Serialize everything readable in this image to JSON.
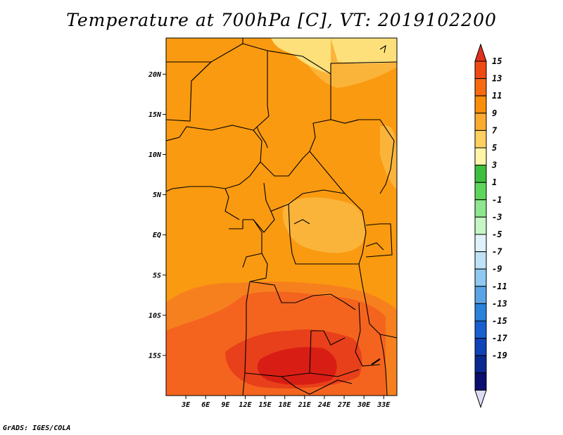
{
  "title": "Temperature at 700hPa [C], VT: 2019102200",
  "credit": "GrADS: IGES/COLA",
  "map": {
    "lat_labels": [
      "20N",
      "15N",
      "10N",
      "5N",
      "EQ",
      "5S",
      "10S",
      "15S"
    ],
    "lat_values": [
      20,
      15,
      10,
      5,
      0,
      -5,
      -10,
      -15
    ],
    "lon_labels": [
      "3E",
      "6E",
      "9E",
      "12E",
      "15E",
      "18E",
      "21E",
      "24E",
      "27E",
      "30E",
      "33E"
    ],
    "lon_values": [
      3,
      6,
      9,
      12,
      15,
      18,
      21,
      24,
      27,
      30,
      33
    ],
    "lat_range": [
      -20,
      24.5
    ],
    "lon_range": [
      0,
      35
    ]
  },
  "colorbar": {
    "labels": [
      "15",
      "13",
      "11",
      "9",
      "7",
      "5",
      "3",
      "1",
      "-1",
      "-3",
      "-5",
      "-7",
      "-9",
      "-11",
      "-13",
      "-15",
      "-17",
      "-19"
    ],
    "colors": [
      "#e0301e",
      "#f04a14",
      "#f86a10",
      "#fa8e0a",
      "#fbaa30",
      "#fdd060",
      "#fff4a8",
      "#3fbf3f",
      "#5ed65e",
      "#8ee68e",
      "#c6f6c6",
      "#dff2fb",
      "#bfe2f6",
      "#8fc8f0",
      "#5aa4e6",
      "#2a82dc",
      "#1a5fcf",
      "#1042b8",
      "#0a2890",
      "#0a0e6e",
      "#dcdcf4"
    ]
  },
  "colors": {
    "base": "#fa9a10",
    "light": "#fbb43a",
    "pale": "#fde07a",
    "warm": "#f7801e",
    "hot": "#f4641e",
    "hotter": "#e8401a",
    "hottest": "#d81e14"
  }
}
